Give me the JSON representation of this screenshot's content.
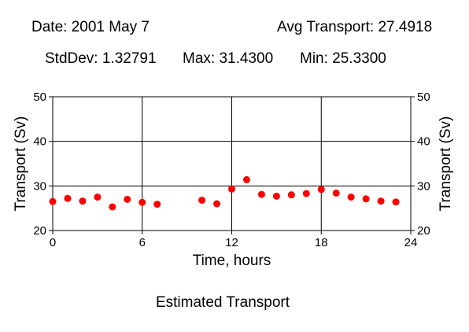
{
  "header": {
    "date": "Date: 2001 May 7",
    "avg": "Avg Transport: 27.4918",
    "stddev": "StdDev: 1.32791",
    "max": "Max: 31.4300",
    "min": "Min: 25.3300"
  },
  "caption": "Estimated Transport",
  "chart_data": {
    "type": "scatter",
    "title": "Estimated Transport",
    "xlabel": "Time, hours",
    "ylabel": "Transport (Sv)",
    "ylabel_right": "Transport (Sv)",
    "xlim": [
      0,
      24
    ],
    "ylim": [
      20,
      50
    ],
    "xticks": [
      0,
      6,
      12,
      18,
      24
    ],
    "yticks": [
      20,
      30,
      40,
      50
    ],
    "grid": true,
    "marker_color": "#ff0000",
    "series": [
      {
        "x": [
          0,
          1,
          2,
          3,
          4,
          5,
          6,
          7,
          10,
          11,
          12,
          13,
          14,
          15,
          16,
          17,
          18,
          19,
          20,
          21,
          22,
          23
        ],
        "y": [
          26.5,
          27.2,
          26.6,
          27.5,
          25.3,
          27.0,
          26.3,
          25.9,
          26.8,
          26.0,
          29.3,
          31.4,
          28.1,
          27.7,
          28.0,
          28.3,
          29.2,
          28.4,
          27.5,
          27.1,
          26.6,
          26.4
        ]
      }
    ]
  }
}
